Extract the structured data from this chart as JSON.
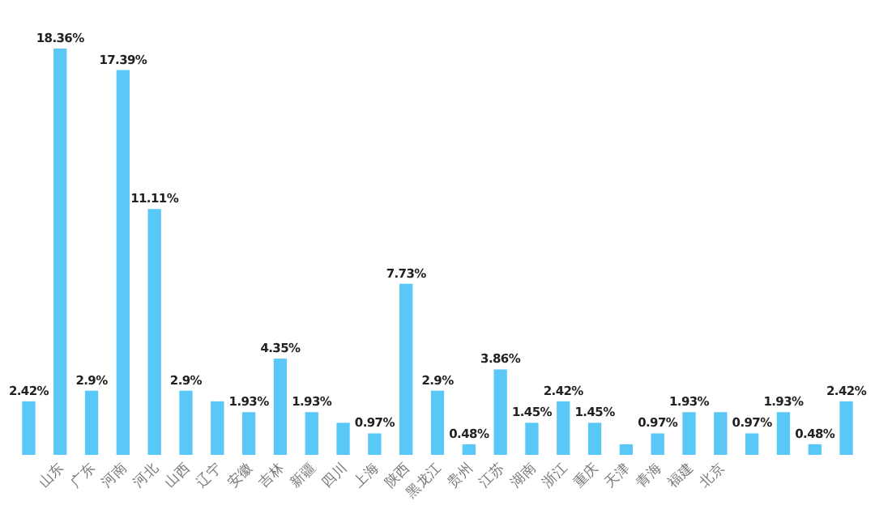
{
  "chart_data": {
    "type": "bar",
    "color": "#5ac8f6",
    "categories": [
      null,
      "山东",
      "广东",
      "河南",
      "河北",
      "山西",
      "辽宁",
      "安徽",
      "吉林",
      "新疆",
      "四川",
      "上海",
      "陕西",
      "黑龙江",
      "贵州",
      "江苏",
      "湖南",
      "浙江",
      "重庆",
      "天津",
      "青海",
      "福建",
      "北京",
      null,
      null,
      null,
      null
    ],
    "values": [
      2.42,
      18.36,
      2.9,
      17.39,
      11.11,
      2.9,
      2.42,
      1.93,
      4.35,
      1.93,
      1.45,
      0.97,
      7.73,
      2.9,
      0.48,
      3.86,
      1.45,
      2.42,
      1.45,
      0.48,
      0.97,
      1.93,
      1.93,
      0.97,
      1.93,
      0.48,
      2.42
    ],
    "value_labels": [
      "2.42%",
      "18.36%",
      "2.9%",
      "17.39%",
      "11.11%",
      "2.9%",
      null,
      "1.93%",
      "4.35%",
      "1.93%",
      null,
      "0.97%",
      "7.73%",
      "2.9%",
      "0.48%",
      "3.86%",
      "1.45%",
      "2.42%",
      "1.45%",
      null,
      "0.97%",
      "1.93%",
      null,
      "0.97%",
      "1.93%",
      "0.48%",
      "2.42%"
    ]
  }
}
